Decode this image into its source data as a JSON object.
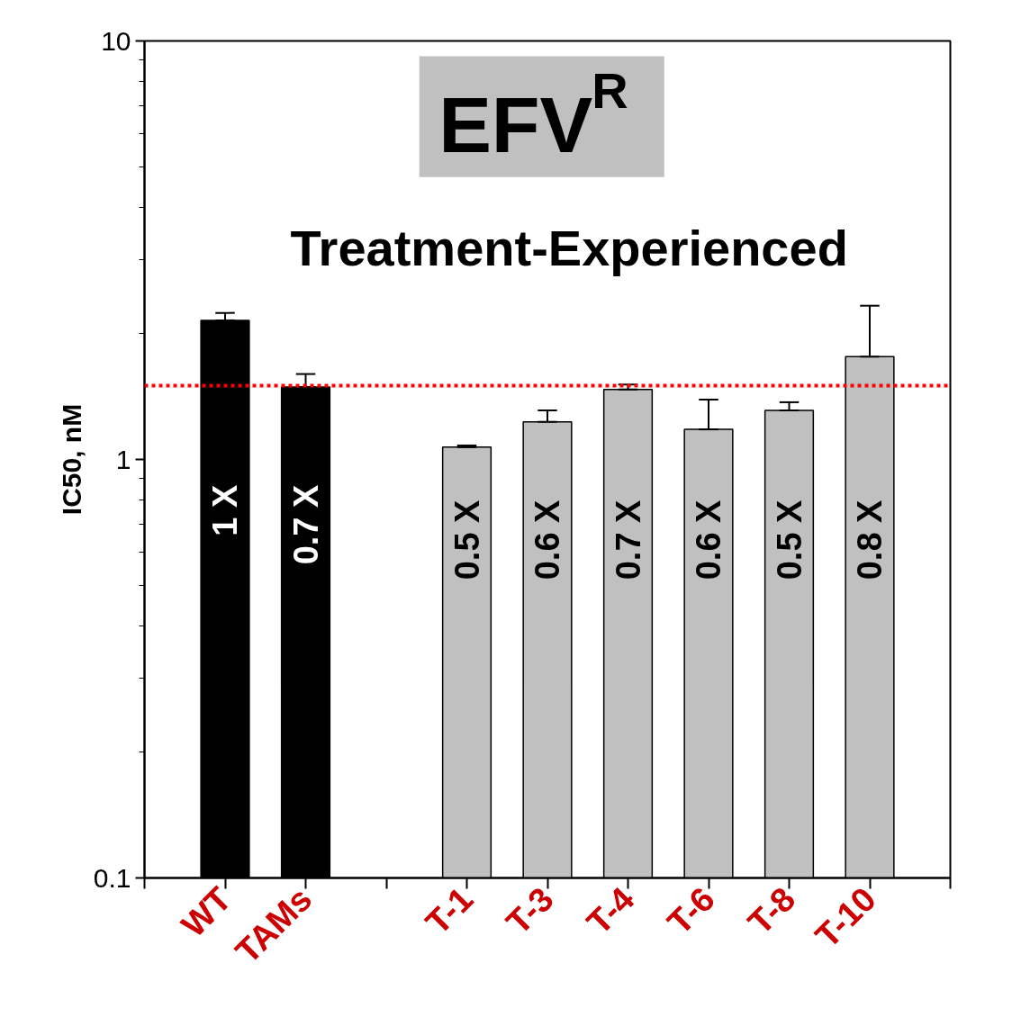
{
  "chart_data": {
    "type": "bar",
    "title": "EFV$^{R}$",
    "subtitle": "Treatment-Experienced",
    "ylabel": "IC50, nM",
    "categories": [
      "WT",
      "TAMs",
      null,
      "T-1",
      "T-3",
      "T-4",
      "T-6",
      "T-8",
      "T-10"
    ],
    "values": [
      2.15,
      1.49,
      null,
      1.07,
      1.23,
      1.47,
      1.18,
      1.31,
      1.76
    ],
    "colors": [
      "#000000",
      "#000000",
      null,
      "#c0c0c0",
      "#c0c0c0",
      "#c0c0c0",
      "#c0c0c0",
      "#c0c0c0",
      "#c0c0c0"
    ],
    "errors": [
      [
        2.15,
        2.24
      ],
      [
        1.49,
        1.6
      ],
      null,
      [
        1.07,
        1.08
      ],
      [
        1.23,
        1.31
      ],
      [
        1.47,
        1.51
      ],
      [
        1.18,
        1.39
      ],
      [
        1.31,
        1.37
      ],
      [
        1.76,
        2.33
      ]
    ],
    "annotations": [
      "1 X",
      "0.7 X",
      "0.5 X",
      "0.6 X",
      "0.7 X",
      "0.6 X",
      "0.5 X",
      "0.8 X"
    ],
    "ref_lines": [
      {
        "axis": "y",
        "value": 1.5,
        "color": "#ff0000",
        "line_style": "dotted"
      }
    ],
    "log": true,
    "ylim": [
      0.1,
      10
    ],
    "yticks": [
      0.1,
      1,
      10
    ]
  }
}
